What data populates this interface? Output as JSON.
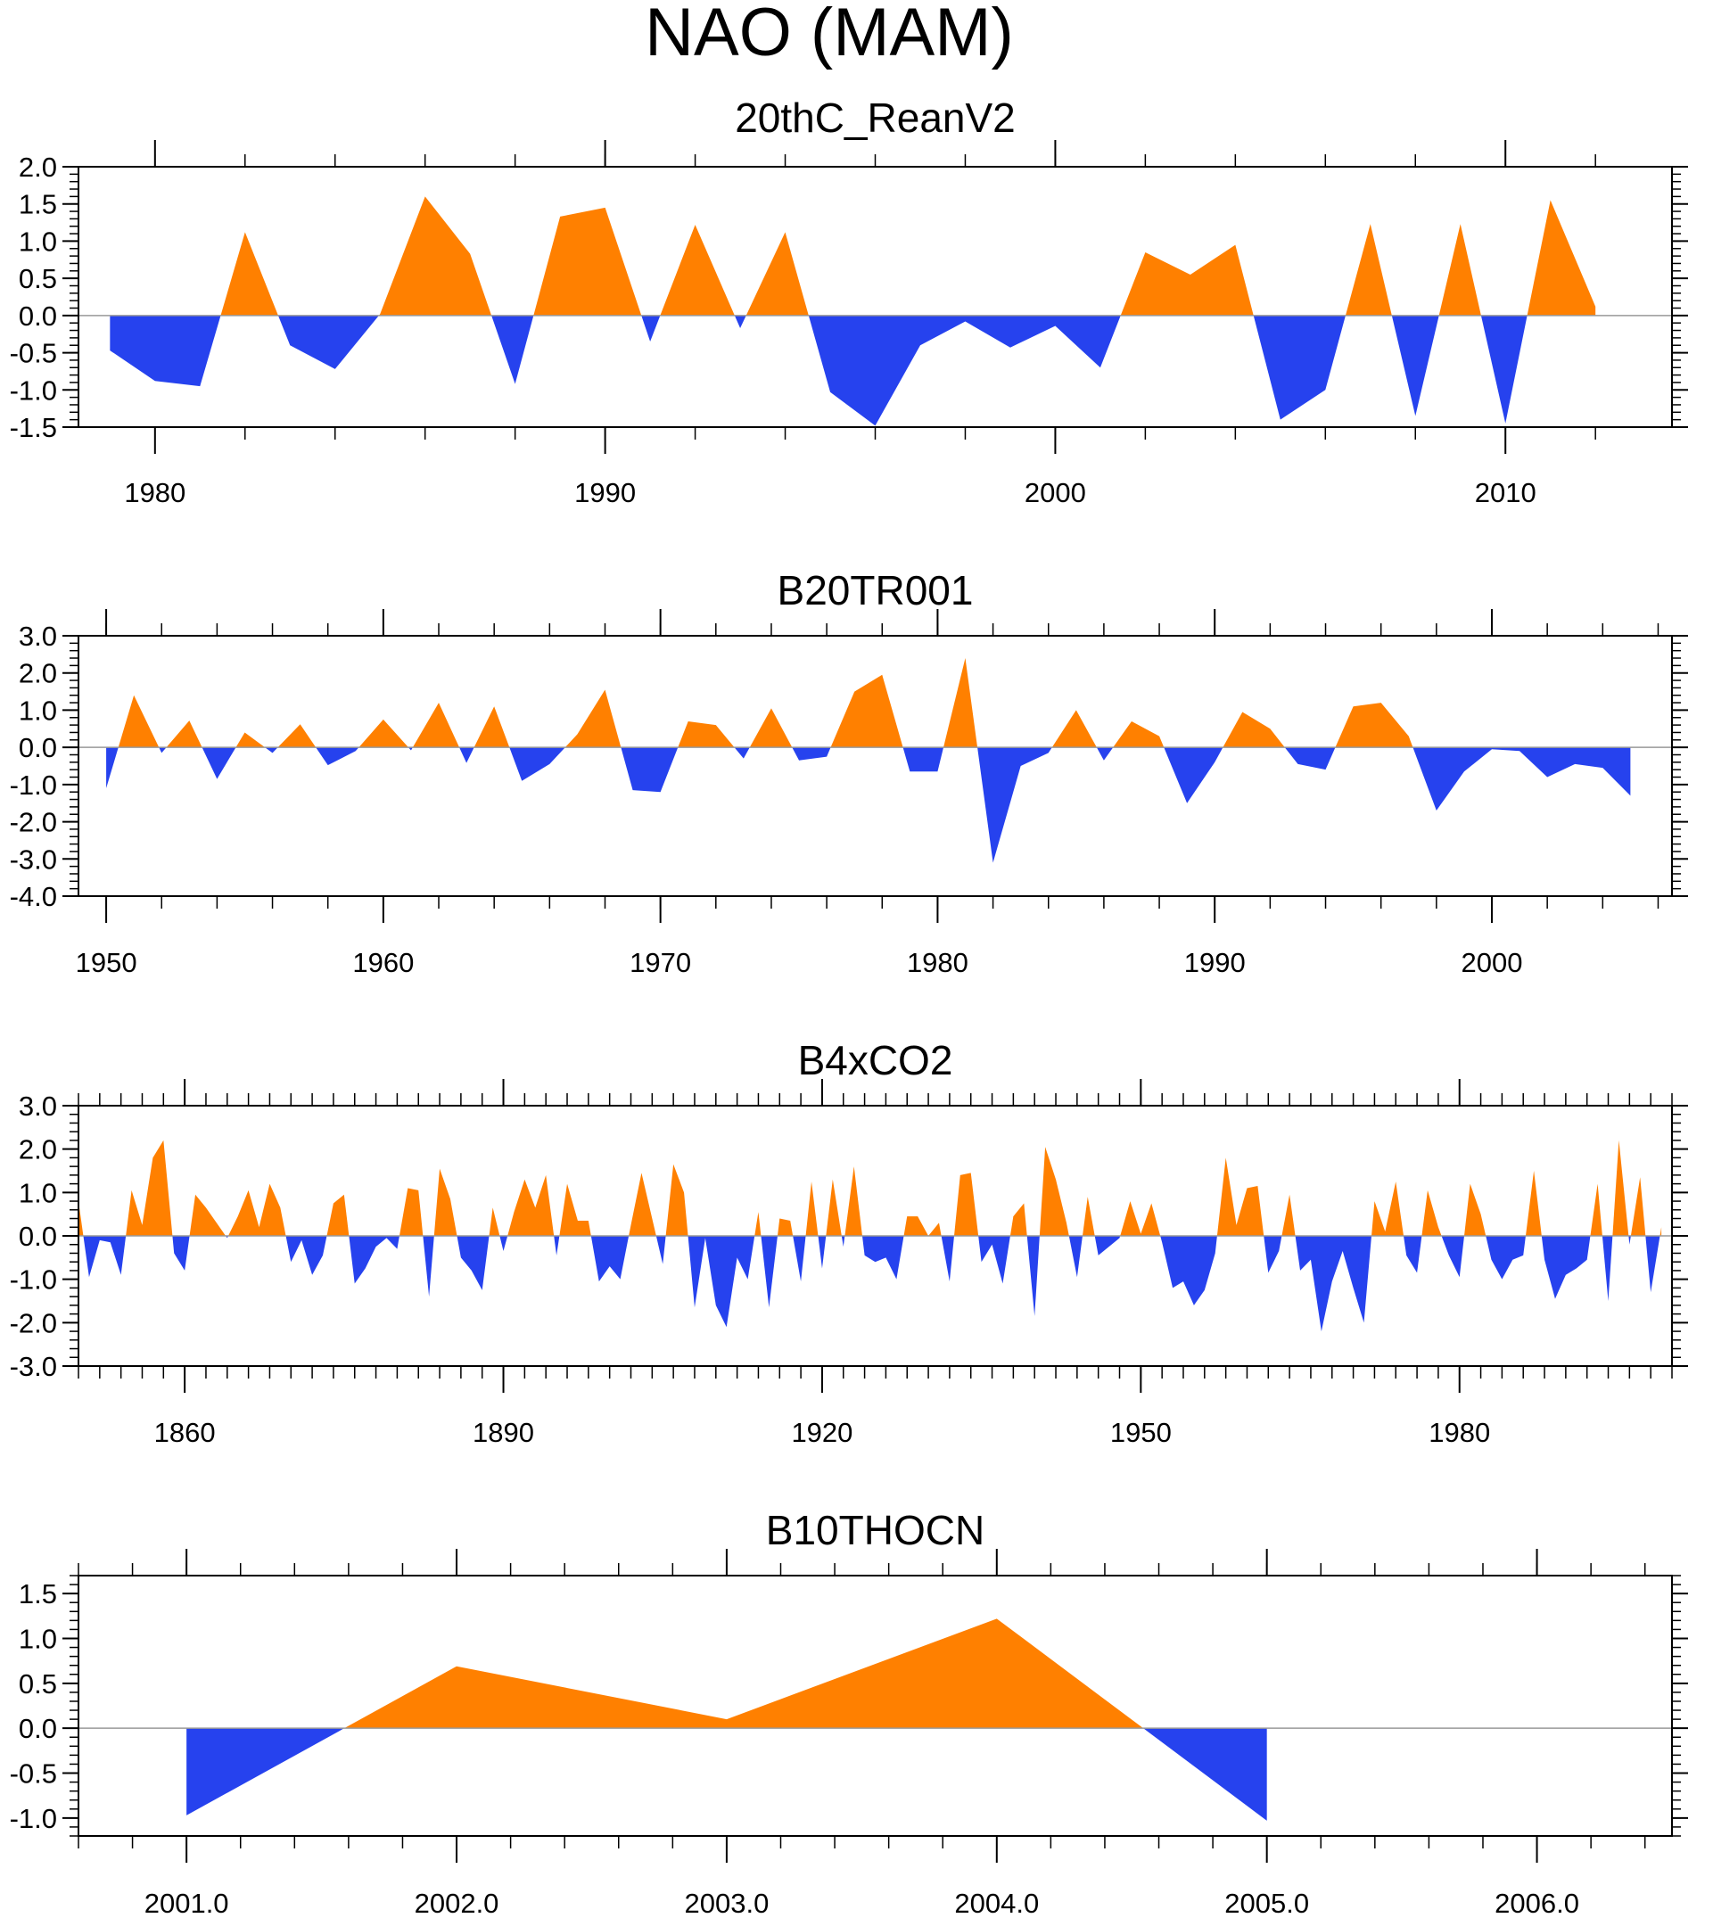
{
  "title": "NAO (MAM)",
  "colors": {
    "positive": "#FF8000",
    "negative": "#2642EE",
    "axis": "#000000",
    "zero_line": "#999999"
  },
  "chart_data": [
    {
      "type": "area",
      "title": "20thC_ReanV2",
      "ylim": [
        -1.5,
        2.0
      ],
      "yticks": [
        -1.5,
        -1.0,
        -0.5,
        0.0,
        0.5,
        1.0,
        1.5,
        2.0
      ],
      "ytick_labels": [
        "-1.5",
        "-1.0",
        "-0.5",
        "0.0",
        "0.5",
        "1.0",
        "1.5",
        "2.0"
      ],
      "xlim": [
        1978.3,
        2013.7
      ],
      "xticks": [
        1980,
        1990,
        2000,
        2010
      ],
      "xtick_labels": [
        "1980",
        "1990",
        "2000",
        "2010"
      ],
      "x_minor_step": 2,
      "x_start": 1979,
      "values": [
        -0.47,
        -0.88,
        -0.95,
        1.12,
        -0.4,
        -0.72,
        0.02,
        1.6,
        0.83,
        -0.92,
        1.33,
        1.45,
        -0.35,
        1.22,
        -0.17,
        1.12,
        -1.03,
        -1.48,
        -0.4,
        -0.08,
        -0.43,
        -0.14,
        -0.7,
        0.85,
        0.55,
        0.95,
        -1.4,
        -1.0,
        1.23,
        -1.35,
        1.23,
        -1.45,
        1.55,
        0.12
      ]
    },
    {
      "type": "area",
      "title": "B20TR001",
      "ylim": [
        -4.0,
        3.0
      ],
      "yticks": [
        -4,
        -3,
        -2,
        -1,
        0,
        1,
        2,
        3
      ],
      "ytick_labels": [
        "-4.0",
        "-3.0",
        "-2.0",
        "-1.0",
        "0.0",
        "1.0",
        "2.0",
        "3.0"
      ],
      "xlim": [
        1949.0,
        2006.5
      ],
      "xticks": [
        1950,
        1960,
        1970,
        1980,
        1990,
        2000
      ],
      "xtick_labels": [
        "1950",
        "1960",
        "1970",
        "1980",
        "1990",
        "2000"
      ],
      "x_minor_step": 2,
      "x_start": 1950,
      "values": [
        -1.1,
        1.4,
        -0.15,
        0.72,
        -0.85,
        0.4,
        -0.15,
        0.62,
        -0.48,
        -0.1,
        0.75,
        -0.08,
        1.2,
        -0.42,
        1.1,
        -0.9,
        -0.45,
        0.35,
        1.55,
        -1.15,
        -1.2,
        0.7,
        0.6,
        -0.3,
        1.05,
        -0.35,
        -0.25,
        1.5,
        1.95,
        -0.65,
        -0.65,
        2.4,
        -3.1,
        -0.5,
        -0.15,
        1.0,
        -0.35,
        0.7,
        0.3,
        -1.5,
        -0.4,
        0.95,
        0.5,
        -0.45,
        -0.6,
        1.1,
        1.2,
        0.3,
        -1.7,
        -0.65,
        -0.05,
        -0.1,
        -0.8,
        -0.45,
        -0.55,
        -1.3
      ]
    },
    {
      "type": "area",
      "title": "B4xCO2",
      "ylim": [
        -3.0,
        3.0
      ],
      "yticks": [
        -3,
        -2,
        -1,
        0,
        1,
        2,
        3
      ],
      "ytick_labels": [
        "-3.0",
        "-2.0",
        "-1.0",
        "0.0",
        "1.0",
        "2.0",
        "3.0"
      ],
      "xlim": [
        1850.0,
        2000.0
      ],
      "xticks": [
        1860,
        1890,
        1920,
        1950,
        1980
      ],
      "xtick_labels": [
        "1860",
        "1890",
        "1920",
        "1950",
        "1980"
      ],
      "x_minor_step": 2,
      "x_start": 1850,
      "values": [
        0.8,
        -0.95,
        -0.1,
        -0.15,
        -0.9,
        1.05,
        0.25,
        1.8,
        2.2,
        -0.4,
        -0.8,
        0.95,
        0.65,
        0.3,
        -0.05,
        0.45,
        1.05,
        0.2,
        1.2,
        0.65,
        -0.6,
        -0.1,
        -0.9,
        -0.45,
        0.75,
        0.95,
        -1.1,
        -0.75,
        -0.25,
        -0.05,
        -0.3,
        1.1,
        1.05,
        -1.4,
        1.55,
        0.85,
        -0.5,
        -0.8,
        -1.25,
        0.65,
        -0.35,
        0.55,
        1.3,
        0.65,
        1.4,
        -0.45,
        1.2,
        0.35,
        0.35,
        -1.05,
        -0.7,
        -1.0,
        0.25,
        1.45,
        0.4,
        -0.65,
        1.65,
        1.0,
        -1.65,
        -0.05,
        -1.6,
        -2.1,
        -0.5,
        -1.0,
        0.55,
        -1.65,
        0.4,
        0.35,
        -1.05,
        1.25,
        -0.75,
        1.3,
        -0.25,
        1.6,
        -0.45,
        -0.6,
        -0.5,
        -1.0,
        0.45,
        0.45,
        0.0,
        0.3,
        -1.05,
        1.4,
        1.45,
        -0.6,
        -0.2,
        -1.1,
        0.45,
        0.75,
        -1.85,
        2.05,
        1.3,
        0.3,
        -0.95,
        0.9,
        -0.45,
        -0.25,
        -0.05,
        0.8,
        0.05,
        0.75,
        -0.15,
        -1.2,
        -1.05,
        -1.6,
        -1.25,
        -0.4,
        1.8,
        0.25,
        1.1,
        1.15,
        -0.85,
        -0.35,
        0.95,
        -0.8,
        -0.55,
        -2.2,
        -1.05,
        -0.35,
        -1.2,
        -2.0,
        0.8,
        0.1,
        1.25,
        -0.45,
        -0.85,
        1.05,
        0.2,
        -0.45,
        -0.95,
        1.2,
        0.5,
        -0.55,
        -1.0,
        -0.55,
        -0.45,
        1.5,
        -0.55,
        -1.45,
        -0.9,
        -0.75,
        -0.55,
        1.2,
        -1.5,
        2.2,
        -0.2,
        1.35,
        -1.3,
        0.2
      ]
    },
    {
      "type": "area",
      "title": "B10THOCN",
      "ylim": [
        -1.2,
        1.7
      ],
      "yticks": [
        -1.0,
        -0.5,
        0.0,
        0.5,
        1.0,
        1.5
      ],
      "ytick_labels": [
        "-1.0",
        "-0.5",
        "0.0",
        "0.5",
        "1.0",
        "1.5"
      ],
      "xlim": [
        2000.6,
        2006.5
      ],
      "xticks": [
        2001,
        2002,
        2003,
        2004,
        2005,
        2006
      ],
      "xtick_labels": [
        "2001.0",
        "2002.0",
        "2003.0",
        "2004.0",
        "2005.0",
        "2006.0"
      ],
      "x_minor_step": 0.2,
      "x_start": 2001,
      "values": [
        -0.97,
        0.69,
        0.1,
        1.22,
        -1.03
      ]
    }
  ]
}
